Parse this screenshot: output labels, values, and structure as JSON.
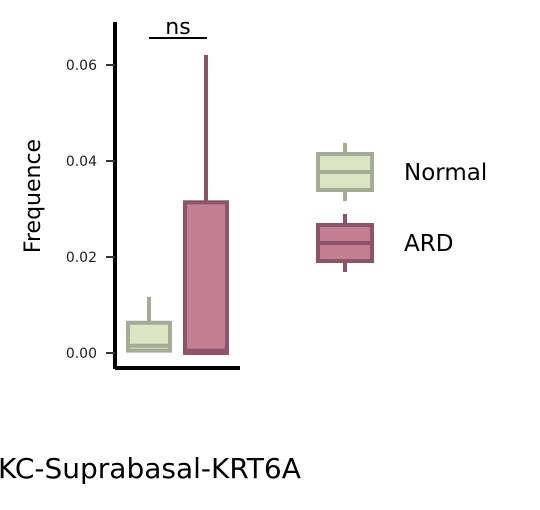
{
  "chart_data": {
    "type": "boxplot",
    "title": "KC-Suprabasal-KRT6A",
    "ylabel": "Frequence",
    "xlabel": "",
    "ylim": [
      -0.003,
      0.068
    ],
    "yticks": [
      0.0,
      0.02,
      0.04,
      0.06
    ],
    "ytick_labels": [
      "0.00",
      "0.02",
      "0.04",
      "0.06"
    ],
    "grid": false,
    "legend_position": "right",
    "series": [
      {
        "name": "Normal",
        "fill": "#dce4c4",
        "stroke": "#a5ab95",
        "min": 0.0005,
        "q1": 0.0005,
        "median": 0.0015,
        "q3": 0.0063,
        "max": 0.0117
      },
      {
        "name": "ARD",
        "fill": "#c27e93",
        "stroke": "#8b5468",
        "min": 0.0,
        "q1": 0.0,
        "median": 0.0005,
        "q3": 0.0314,
        "max": 0.0621
      }
    ],
    "significance": {
      "label": "ns",
      "between": [
        "Normal",
        "ARD"
      ]
    }
  }
}
